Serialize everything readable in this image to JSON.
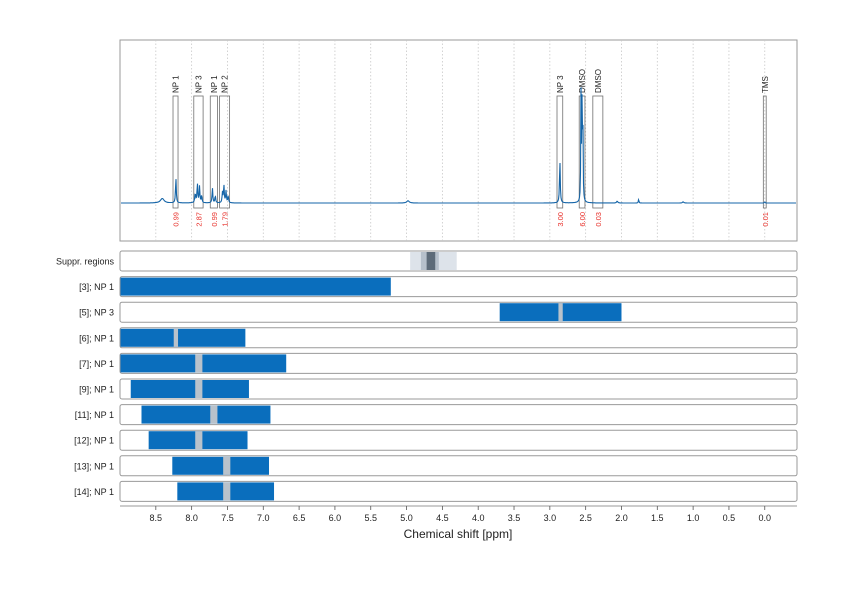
{
  "colors": {
    "spectrum": "#1565a8",
    "bar": "#0a6ebd",
    "gap": "#b9c2cb",
    "integral": "#e8302a",
    "frame": "#9a9a9a",
    "grid": "#c8c8c8",
    "suppr_outer": "#dde3ea",
    "suppr_mid": "#b6c0cb",
    "suppr_inner": "#5d6b79",
    "label_box": "#707070"
  },
  "chart_data": {
    "type": "nmr-spectrum",
    "xlabel": "Chemical shift [ppm]",
    "xlim": [
      9.0,
      -0.45
    ],
    "x_reversed": true,
    "grid": true,
    "x_ticks": [
      8.5,
      8.0,
      7.5,
      7.0,
      6.5,
      6.0,
      5.5,
      5.0,
      4.5,
      4.0,
      3.5,
      3.0,
      2.5,
      2.0,
      1.5,
      1.0,
      0.5,
      0.0
    ],
    "x_tick_labels": [
      "8.5",
      "8.0",
      "7.5",
      "7.0",
      "6.5",
      "6.0",
      "5.5",
      "5.0",
      "4.5",
      "4.0",
      "3.5",
      "3.0",
      "2.5",
      "2.0",
      "1.5",
      "1.0",
      "0.5",
      "0.0"
    ],
    "spectrum_peaks": [
      {
        "ppm": 8.41,
        "height": 0.03,
        "width": 0.03
      },
      {
        "ppm": 8.22,
        "height": 0.17,
        "width": 0.006
      },
      {
        "ppm": 7.95,
        "height": 0.06,
        "width": 0.008
      },
      {
        "ppm": 7.92,
        "height": 0.13,
        "width": 0.006
      },
      {
        "ppm": 7.89,
        "height": 0.11,
        "width": 0.006
      },
      {
        "ppm": 7.86,
        "height": 0.05,
        "width": 0.006
      },
      {
        "ppm": 7.71,
        "height": 0.1,
        "width": 0.006
      },
      {
        "ppm": 7.67,
        "height": 0.05,
        "width": 0.006
      },
      {
        "ppm": 7.57,
        "height": 0.07,
        "width": 0.006
      },
      {
        "ppm": 7.55,
        "height": 0.12,
        "width": 0.006
      },
      {
        "ppm": 7.52,
        "height": 0.08,
        "width": 0.006
      },
      {
        "ppm": 7.49,
        "height": 0.05,
        "width": 0.006
      },
      {
        "ppm": 4.98,
        "height": 0.015,
        "width": 0.02
      },
      {
        "ppm": 2.86,
        "height": 0.29,
        "width": 0.006
      },
      {
        "ppm": 2.565,
        "height": 0.7,
        "width": 0.004
      },
      {
        "ppm": 2.552,
        "height": 0.62,
        "width": 0.004
      },
      {
        "ppm": 2.54,
        "height": 0.7,
        "width": 0.004
      },
      {
        "ppm": 2.06,
        "height": 0.012,
        "width": 0.01
      },
      {
        "ppm": 1.76,
        "height": 0.03,
        "width": 0.004
      },
      {
        "ppm": 1.14,
        "height": 0.008,
        "width": 0.01
      },
      {
        "ppm": 0.0,
        "height": 0.01,
        "width": 0.004
      }
    ],
    "integration_regions": [
      {
        "label": "NP 1",
        "from": 8.26,
        "to": 8.19,
        "integral": "0.99"
      },
      {
        "label": "NP 3",
        "from": 7.97,
        "to": 7.84,
        "integral": "2.87"
      },
      {
        "label": "NP 1",
        "from": 7.74,
        "to": 7.64,
        "integral": "0.99"
      },
      {
        "label": "NP 2",
        "from": 7.61,
        "to": 7.47,
        "integral": "1.79"
      },
      {
        "label": "NP 3",
        "from": 2.9,
        "to": 2.82,
        "integral": "3.00"
      },
      {
        "label": "DMSO",
        "from": 2.59,
        "to": 2.51,
        "integral": "6.00"
      },
      {
        "label": "DMSO",
        "from": 2.4,
        "to": 2.26,
        "integral": "0.03"
      },
      {
        "label": "TMS",
        "from": 0.02,
        "to": -0.02,
        "integral": "0.01"
      }
    ],
    "suppressed_regions": {
      "label": "Suppr. regions",
      "outer": [
        4.95,
        4.3
      ],
      "middle": [
        4.8,
        4.55
      ],
      "inner": [
        4.72,
        4.6
      ]
    },
    "rows": [
      {
        "label": "[3]; NP 1",
        "from": 9.0,
        "to": 5.22,
        "gaps": []
      },
      {
        "label": "[5]; NP 3",
        "from": 3.7,
        "to": 2.0,
        "gaps": [
          [
            2.88,
            2.82
          ]
        ]
      },
      {
        "label": "[6]; NP 1",
        "from": 9.0,
        "to": 7.25,
        "gaps": [
          [
            8.25,
            8.19
          ]
        ]
      },
      {
        "label": "[7]; NP 1",
        "from": 9.0,
        "to": 6.68,
        "gaps": [
          [
            7.95,
            7.85
          ]
        ]
      },
      {
        "label": "[9]; NP 1",
        "from": 8.85,
        "to": 7.2,
        "gaps": [
          [
            7.95,
            7.85
          ]
        ]
      },
      {
        "label": "[11]; NP 1",
        "from": 8.7,
        "to": 6.9,
        "gaps": [
          [
            7.74,
            7.64
          ]
        ]
      },
      {
        "label": "[12]; NP 1",
        "from": 8.6,
        "to": 7.22,
        "gaps": [
          [
            7.95,
            7.85
          ]
        ]
      },
      {
        "label": "[13]; NP 1",
        "from": 8.27,
        "to": 6.92,
        "gaps": [
          [
            7.56,
            7.46
          ]
        ]
      },
      {
        "label": "[14]; NP 1",
        "from": 8.2,
        "to": 6.85,
        "gaps": [
          [
            7.56,
            7.46
          ]
        ]
      }
    ]
  }
}
